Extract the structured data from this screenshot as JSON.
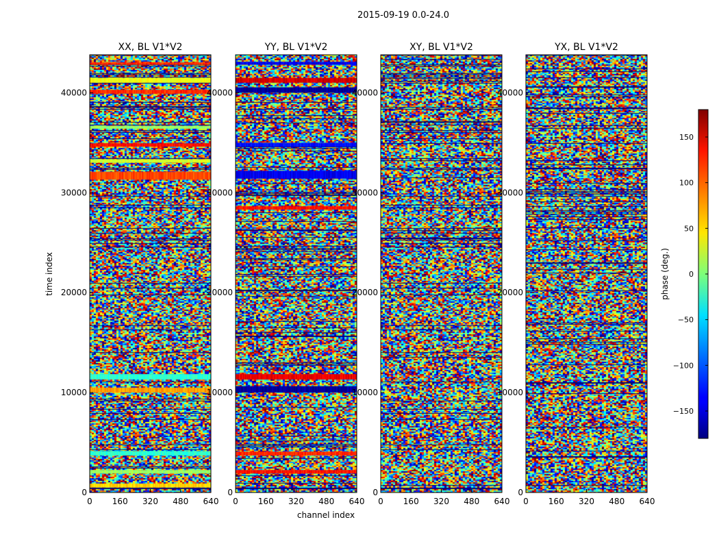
{
  "figure_title": "2015-09-19 0.0-24.0",
  "chart_data": {
    "type": "heatmap",
    "title": "2015-09-19 0.0-24.0",
    "xlabel": "channel index",
    "ylabel": "time index",
    "xlim": [
      0,
      640
    ],
    "ylim": [
      0,
      43800
    ],
    "xticks": [
      0,
      160,
      320,
      480,
      640
    ],
    "yticks": [
      0,
      10000,
      20000,
      30000,
      40000
    ],
    "colormap": "jet",
    "panels": [
      {
        "title": "XX, BL V1*V2",
        "bands": [
          {
            "y": 500,
            "h": 400,
            "value": 60
          },
          {
            "y": 1900,
            "h": 350,
            "value": 10
          },
          {
            "y": 3700,
            "h": 450,
            "value": -30
          },
          {
            "y": 10000,
            "h": 500,
            "value": 80
          },
          {
            "y": 11300,
            "h": 550,
            "value": -30
          },
          {
            "y": 31300,
            "h": 800,
            "value": 110
          },
          {
            "y": 33000,
            "h": 350,
            "value": 30
          },
          {
            "y": 34600,
            "h": 350,
            "value": 130
          },
          {
            "y": 36400,
            "h": 300,
            "value": 10
          },
          {
            "y": 39900,
            "h": 400,
            "value": 120
          },
          {
            "y": 41000,
            "h": 500,
            "value": 40
          },
          {
            "y": 42800,
            "h": 250,
            "value": 120
          }
        ]
      },
      {
        "title": "YY, BL V1*V2",
        "bands": [
          {
            "y": 1900,
            "h": 350,
            "value": 130
          },
          {
            "y": 3700,
            "h": 400,
            "value": 120
          },
          {
            "y": 10000,
            "h": 650,
            "value": -170
          },
          {
            "y": 11300,
            "h": 550,
            "value": 140
          },
          {
            "y": 28300,
            "h": 350,
            "value": 130
          },
          {
            "y": 31400,
            "h": 800,
            "value": -140
          },
          {
            "y": 34600,
            "h": 400,
            "value": -130
          },
          {
            "y": 40000,
            "h": 550,
            "value": -170
          },
          {
            "y": 41000,
            "h": 500,
            "value": 150
          },
          {
            "y": 42800,
            "h": 300,
            "value": -140
          }
        ]
      },
      {
        "title": "XY, BL V1*V2",
        "bands": []
      },
      {
        "title": "YX, BL V1*V2",
        "bands": []
      }
    ],
    "colorbar": {
      "label": "phase (deg.)",
      "range": [
        -180,
        180
      ],
      "ticks": [
        150,
        100,
        50,
        0,
        -50,
        -100,
        -150
      ]
    }
  }
}
